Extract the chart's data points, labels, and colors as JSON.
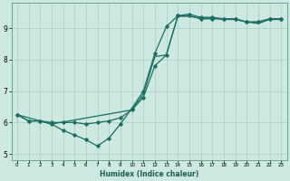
{
  "xlabel": "Humidex (Indice chaleur)",
  "bg_color": "#cce8e0",
  "grid_color": "#aaccc4",
  "line_color": "#1a6e64",
  "xlim": [
    -0.5,
    23.5
  ],
  "ylim": [
    4.8,
    9.8
  ],
  "xticks": [
    0,
    1,
    2,
    3,
    4,
    5,
    6,
    7,
    8,
    9,
    10,
    11,
    12,
    13,
    14,
    15,
    16,
    17,
    18,
    19,
    20,
    21,
    22,
    23
  ],
  "yticks": [
    5,
    6,
    7,
    8,
    9
  ],
  "line1_x": [
    0,
    1,
    2,
    3,
    4,
    5,
    6,
    7,
    8,
    9,
    10,
    11,
    12,
    13,
    14,
    15,
    16,
    17,
    18,
    19,
    20,
    21,
    22,
    23
  ],
  "line1_y": [
    6.25,
    6.05,
    6.05,
    5.95,
    5.75,
    5.6,
    5.45,
    5.25,
    5.5,
    5.95,
    6.45,
    7.0,
    8.2,
    9.05,
    9.4,
    9.4,
    9.3,
    9.3,
    9.3,
    9.3,
    9.2,
    9.2,
    9.3,
    9.3
  ],
  "line2_x": [
    0,
    1,
    2,
    3,
    4,
    5,
    6,
    7,
    8,
    9,
    10,
    11,
    12,
    13,
    14,
    15,
    16,
    17,
    18,
    19,
    20,
    21,
    22,
    23
  ],
  "line2_y": [
    6.25,
    6.05,
    6.05,
    6.0,
    6.0,
    6.0,
    5.95,
    6.0,
    6.05,
    6.15,
    6.4,
    6.8,
    7.8,
    8.15,
    9.4,
    9.45,
    9.35,
    9.35,
    9.3,
    9.3,
    9.2,
    9.2,
    9.3,
    9.3
  ],
  "line3_x": [
    0,
    3,
    10,
    11,
    12,
    13,
    14,
    15,
    16,
    17,
    18,
    19,
    20,
    21,
    22,
    23
  ],
  "line3_y": [
    6.25,
    5.95,
    6.4,
    6.9,
    8.1,
    8.15,
    9.38,
    9.38,
    9.32,
    9.32,
    9.28,
    9.28,
    9.2,
    9.15,
    9.28,
    9.28
  ]
}
